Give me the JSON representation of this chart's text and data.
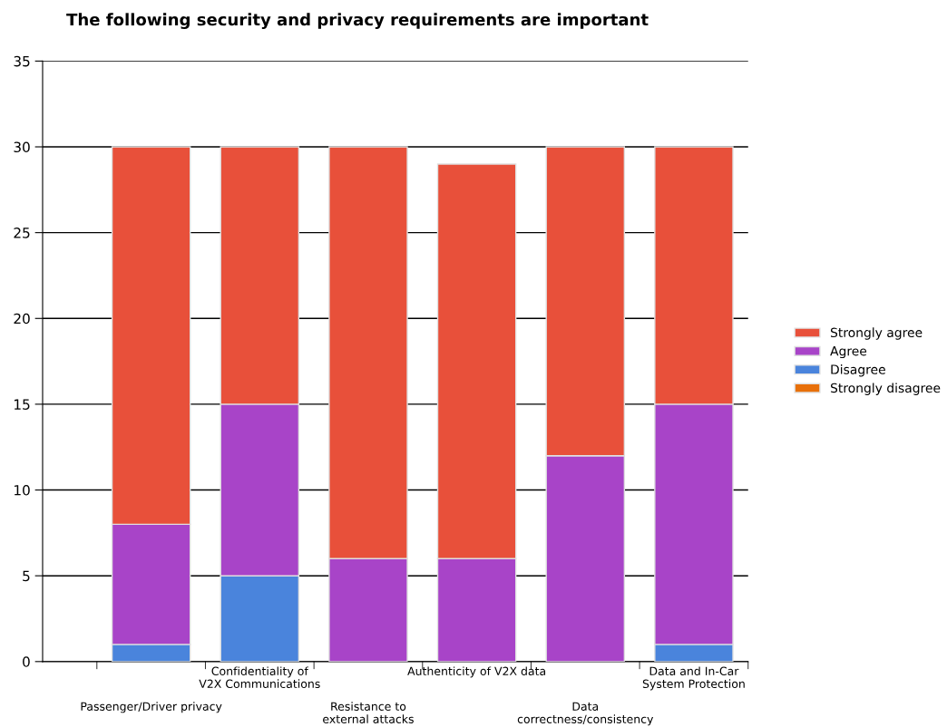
{
  "chart_data": {
    "type": "bar",
    "title": "The following security and privacy requirements are important",
    "categories": [
      "Passenger/Driver privacy",
      "Confidentiality of\nV2X Communications",
      "Resistance to\nexternal attacks",
      "Authenticity of V2X data",
      "Data\ncorrectness/consistency",
      "Data and In-Car\nSystem Protection"
    ],
    "stacked": true,
    "series": [
      {
        "name": "Strongly disagree",
        "color": "#e8700a",
        "values": [
          0,
          0,
          0,
          0,
          0,
          0
        ]
      },
      {
        "name": "Disagree",
        "color": "#4a84dc",
        "values": [
          1,
          5,
          0,
          0,
          0,
          1
        ]
      },
      {
        "name": "Agree",
        "color": "#a844c8",
        "values": [
          7,
          10,
          6,
          6,
          12,
          14
        ]
      },
      {
        "name": "Strongly agree",
        "color": "#e8503a",
        "values": [
          22,
          15,
          24,
          23,
          18,
          15
        ]
      }
    ],
    "ylim": [
      0,
      35
    ],
    "yticks": [
      0,
      5,
      10,
      15,
      20,
      25,
      30,
      35
    ],
    "grid": "y",
    "legend": "right"
  }
}
